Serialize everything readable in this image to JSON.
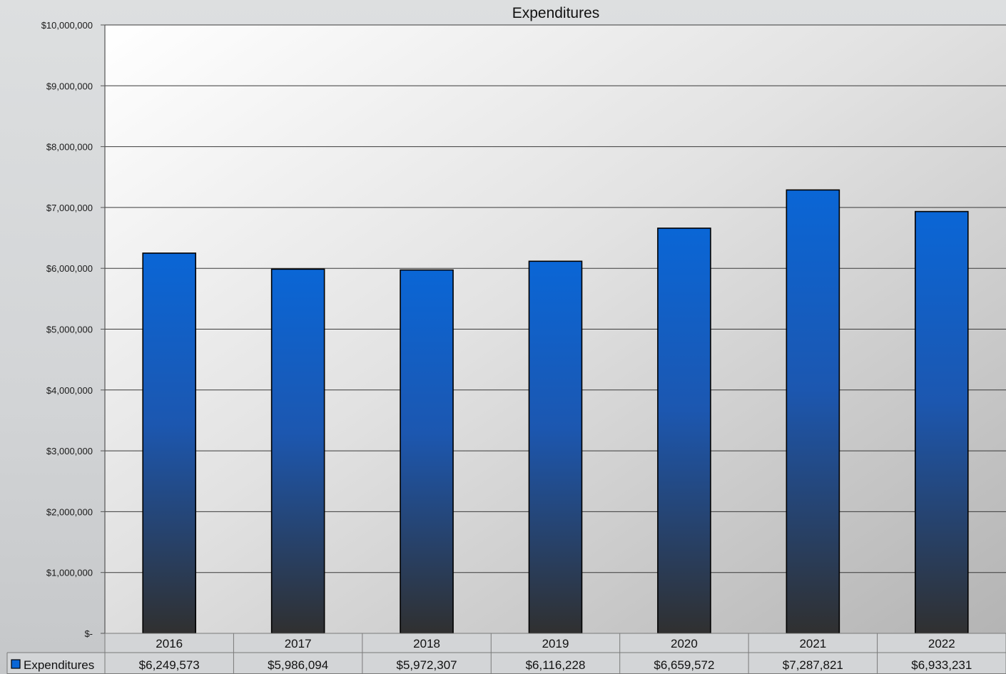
{
  "chart_data": {
    "type": "bar",
    "title": "Expenditures",
    "categories": [
      "2016",
      "2017",
      "2018",
      "2019",
      "2020",
      "2021",
      "2022"
    ],
    "series": [
      {
        "name": "Expenditures",
        "values": [
          6249573,
          5986094,
          5972307,
          6116228,
          6659572,
          7287821,
          6933231
        ],
        "value_labels": [
          "$6,249,573",
          "$5,986,094",
          "$5,972,307",
          "$6,116,228",
          "$6,659,572",
          "$7,287,821",
          "$6,933,231"
        ]
      }
    ],
    "ylim": [
      0,
      10000000
    ],
    "yticks": [
      0,
      1000000,
      2000000,
      3000000,
      4000000,
      5000000,
      6000000,
      7000000,
      8000000,
      9000000,
      10000000
    ],
    "ytick_labels": [
      "$-",
      "$1,000,000",
      "$2,000,000",
      "$3,000,000",
      "$4,000,000",
      "$5,000,000",
      "$6,000,000",
      "$7,000,000",
      "$8,000,000",
      "$9,000,000",
      "$10,000,000"
    ],
    "grid": true,
    "legend": "data-table",
    "colors": {
      "bar_top": "#0a66d6",
      "bar_bottom": "#303030"
    }
  }
}
